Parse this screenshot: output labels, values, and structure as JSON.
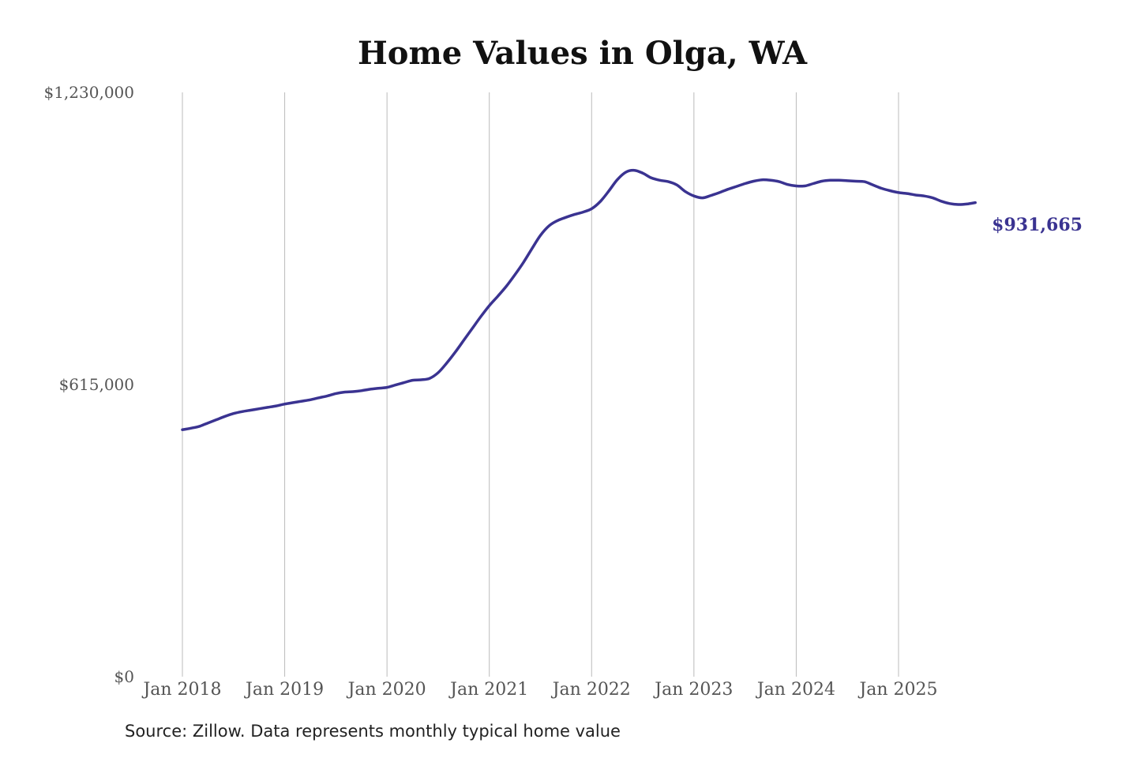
{
  "colors": {
    "line": "#3a3391",
    "grid": "#bbbbbb",
    "tick_text": "#555555"
  },
  "chart_data": {
    "type": "line",
    "title": "Home Values in Olga, WA",
    "xlabel": "",
    "ylabel": "",
    "y_ticks": [
      {
        "value": 0,
        "label": "$0"
      },
      {
        "value": 615000,
        "label": "$615,000"
      },
      {
        "value": 1230000,
        "label": "$1,230,000"
      }
    ],
    "x_ticks": [
      {
        "value": 2018.0,
        "label": "Jan 2018"
      },
      {
        "value": 2019.0,
        "label": "Jan 2019"
      },
      {
        "value": 2020.0,
        "label": "Jan 2020"
      },
      {
        "value": 2021.0,
        "label": "Jan 2021"
      },
      {
        "value": 2022.0,
        "label": "Jan 2022"
      },
      {
        "value": 2023.0,
        "label": "Jan 2023"
      },
      {
        "value": 2024.0,
        "label": "Jan 2024"
      },
      {
        "value": 2025.0,
        "label": "Jan 2025"
      }
    ],
    "ylim": [
      0,
      1230000
    ],
    "xlim": [
      2018.0,
      2025.8333
    ],
    "grid": "vertical",
    "series": [
      {
        "x": [
          2018.0,
          2018.0833,
          2018.1667,
          2018.25,
          2018.3333,
          2018.4167,
          2018.5,
          2018.5833,
          2018.6667,
          2018.75,
          2018.8333,
          2018.9167,
          2019.0,
          2019.0833,
          2019.1667,
          2019.25,
          2019.3333,
          2019.4167,
          2019.5,
          2019.5833,
          2019.6667,
          2019.75,
          2019.8333,
          2019.9167,
          2020.0,
          2020.0833,
          2020.1667,
          2020.25,
          2020.3333,
          2020.4167,
          2020.5,
          2020.5833,
          2020.6667,
          2020.75,
          2020.8333,
          2020.9167,
          2021.0,
          2021.0833,
          2021.1667,
          2021.25,
          2021.3333,
          2021.4167,
          2021.5,
          2021.5833,
          2021.6667,
          2021.75,
          2021.8333,
          2021.9167,
          2022.0,
          2022.0833,
          2022.1667,
          2022.25,
          2022.3333,
          2022.4167,
          2022.5,
          2022.5833,
          2022.6667,
          2022.75,
          2022.8333,
          2022.9167,
          2023.0,
          2023.0833,
          2023.1667,
          2023.25,
          2023.3333,
          2023.4167,
          2023.5,
          2023.5833,
          2023.6667,
          2023.75,
          2023.8333,
          2023.9167,
          2024.0,
          2024.0833,
          2024.1667,
          2024.25,
          2024.3333,
          2024.4167,
          2024.5,
          2024.5833,
          2024.6667,
          2024.75,
          2024.8333,
          2024.9167,
          2025.0,
          2025.0833,
          2025.1667,
          2025.25,
          2025.3333,
          2025.4167,
          2025.5,
          2025.5833,
          2025.6667,
          2025.75,
          2025.8333
        ],
        "values": [
          520000,
          523000,
          527000,
          534000,
          541000,
          548000,
          554000,
          558000,
          561000,
          564000,
          567000,
          570000,
          574000,
          577000,
          580000,
          583000,
          587000,
          591000,
          596000,
          599000,
          600000,
          602000,
          605000,
          607000,
          609000,
          614000,
          619000,
          624000,
          625000,
          628000,
          640000,
          660000,
          683000,
          708000,
          733000,
          758000,
          781000,
          801000,
          822000,
          846000,
          872000,
          901000,
          929000,
          949000,
          960000,
          967000,
          973000,
          978000,
          985000,
          1000000,
          1022000,
          1046000,
          1062000,
          1066000,
          1060000,
          1050000,
          1045000,
          1042000,
          1035000,
          1021000,
          1012000,
          1008000,
          1013000,
          1019000,
          1026000,
          1032000,
          1038000,
          1043000,
          1046000,
          1045000,
          1042000,
          1036000,
          1033000,
          1033000,
          1038000,
          1043000,
          1045000,
          1045000,
          1044000,
          1043000,
          1042000,
          1035000,
          1028000,
          1023000,
          1019000,
          1017000,
          1014000,
          1012000,
          1008000,
          1001000,
          996000,
          994000,
          995000,
          998000,
          931665
        ]
      }
    ],
    "end_label": "$931,665",
    "source": "Source: Zillow. Data represents monthly typical home value"
  }
}
